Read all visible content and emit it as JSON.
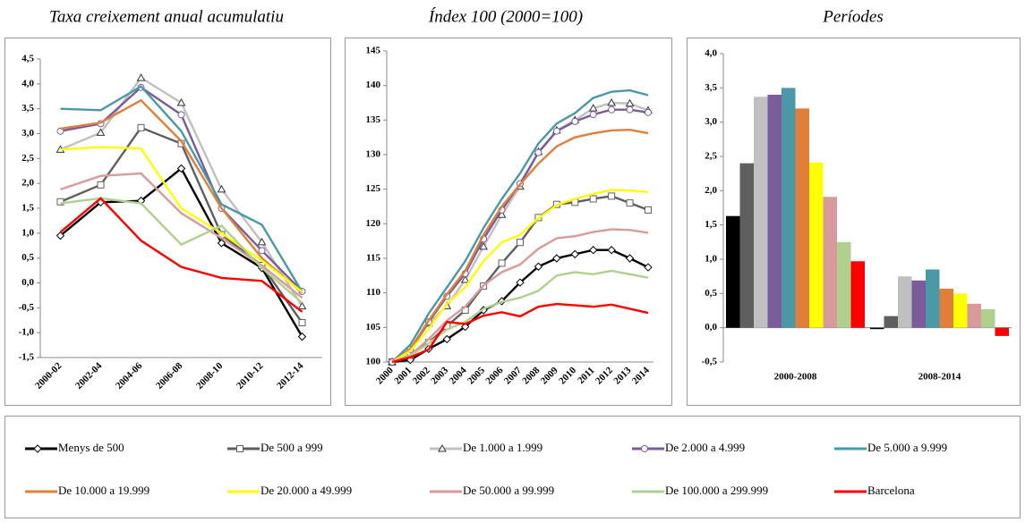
{
  "chart_data": [
    {
      "type": "line",
      "title": "Taxa creixement anual acumulatiu",
      "categories": [
        "2000-02",
        "2002-04",
        "2004-06",
        "2006-08",
        "2008-10",
        "2010-12",
        "2012-14"
      ],
      "ylim": [
        -1.5,
        4.5
      ],
      "yticks": [
        {
          "value": -1.5,
          "label": "-1,5"
        },
        {
          "value": -1,
          "label": "-1,0"
        },
        {
          "value": -0.5,
          "label": "-0,5"
        },
        {
          "value": 0,
          "label": "0,0"
        },
        {
          "value": 0.5,
          "label": "0,5"
        },
        {
          "value": 1,
          "label": "1,0"
        },
        {
          "value": 1.5,
          "label": "1,5"
        },
        {
          "value": 2,
          "label": "2,0"
        },
        {
          "value": 2.5,
          "label": "2,5"
        },
        {
          "value": 3,
          "label": "3,0"
        },
        {
          "value": 3.5,
          "label": "3,5"
        },
        {
          "value": 4,
          "label": "4,0"
        },
        {
          "value": 4.5,
          "label": "4,5"
        }
      ],
      "series": [
        {
          "name": "Menys de 500",
          "color": "#000000",
          "marker": "diamond",
          "values": [
            0.95,
            1.62,
            1.65,
            2.3,
            0.8,
            0.3,
            -1.08
          ]
        },
        {
          "name": "De 500 a 999",
          "color": "#5f5f5f",
          "marker": "square",
          "values": [
            1.63,
            1.97,
            3.12,
            2.8,
            0.97,
            0.35,
            -0.8
          ]
        },
        {
          "name": "De 1.000 a 1.999",
          "color": "#c0c0c0",
          "marker": "triangle",
          "values": [
            2.68,
            3.02,
            4.12,
            3.62,
            1.88,
            0.82,
            -0.47
          ]
        },
        {
          "name": "De 2.000 a 4.999",
          "color": "#7a5c9a",
          "marker": "circle",
          "values": [
            3.05,
            3.2,
            3.93,
            3.38,
            1.5,
            0.65,
            -0.17
          ]
        },
        {
          "name": "De 5.000 a 9.999",
          "color": "#4a98a8",
          "values": [
            3.5,
            3.47,
            3.95,
            3.05,
            1.58,
            1.17,
            -0.18
          ]
        },
        {
          "name": "De 10.000 a 19.999",
          "color": "#e07f3a",
          "values": [
            3.1,
            3.22,
            3.67,
            2.85,
            1.5,
            0.5,
            -0.2
          ]
        },
        {
          "name": "De 20.000 a 49.999",
          "color": "#ffff00",
          "values": [
            2.68,
            2.73,
            2.7,
            1.5,
            1.0,
            0.45,
            -0.18
          ]
        },
        {
          "name": "De 50.000 a 99.999",
          "color": "#d89a9a",
          "values": [
            1.88,
            2.15,
            2.2,
            1.4,
            0.9,
            0.35,
            -0.3
          ]
        },
        {
          "name": "De 100.000 a 299.999",
          "color": "#b0d090",
          "values": [
            1.6,
            1.7,
            1.6,
            0.77,
            1.15,
            0.3,
            -0.4
          ]
        },
        {
          "name": "Barcelona",
          "color": "#ff0000",
          "values": [
            1.02,
            1.7,
            0.85,
            0.32,
            0.1,
            0.04,
            -0.58
          ]
        }
      ]
    },
    {
      "type": "line",
      "title": "Índex 100 (2000=100)",
      "categories": [
        "2000",
        "2001",
        "2002",
        "2003",
        "2004",
        "2005",
        "2006",
        "2007",
        "2008",
        "2009",
        "2010",
        "2011",
        "2012",
        "2013",
        "2014"
      ],
      "ylim": [
        100,
        145
      ],
      "yticks": [
        100,
        105,
        110,
        115,
        120,
        125,
        130,
        135,
        140,
        145
      ],
      "series": [
        {
          "values": [
            100,
            100.3,
            101.9,
            103.3,
            105.1,
            107.5,
            108.8,
            111.5,
            113.8,
            115.0,
            115.6,
            116.2,
            116.2,
            115.0,
            113.7
          ]
        },
        {
          "values": [
            100,
            101.0,
            102.8,
            105.2,
            107.5,
            111.0,
            114.3,
            117.3,
            120.9,
            122.8,
            123.1,
            123.6,
            124.0,
            123.0,
            122.0
          ]
        },
        {
          "values": [
            100,
            101.8,
            105.6,
            108.1,
            111.9,
            116.7,
            121.3,
            125.4,
            130.4,
            133.5,
            135.0,
            136.7,
            137.5,
            137.4,
            136.4
          ]
        },
        {
          "values": [
            100,
            101.8,
            105.8,
            109.5,
            112.8,
            117.8,
            122.0,
            125.8,
            130.3,
            133.4,
            134.8,
            135.8,
            136.5,
            136.5,
            136.1
          ]
        },
        {
          "values": [
            100,
            102.5,
            107.0,
            110.8,
            114.6,
            119.4,
            123.6,
            127.3,
            131.6,
            134.5,
            136.0,
            138.2,
            139.1,
            139.3,
            138.6
          ]
        },
        {
          "values": [
            100,
            101.9,
            106.0,
            109.8,
            113.2,
            118.4,
            122.5,
            125.7,
            128.7,
            131.2,
            132.5,
            133.1,
            133.5,
            133.6,
            133.1
          ]
        },
        {
          "values": [
            100,
            101.6,
            104.8,
            108.4,
            110.8,
            114.6,
            117.3,
            118.4,
            120.8,
            122.7,
            123.6,
            124.3,
            124.9,
            124.8,
            124.6
          ]
        },
        {
          "values": [
            100,
            101.0,
            103.3,
            106.0,
            108.0,
            111.1,
            113.0,
            114.1,
            116.4,
            117.9,
            118.2,
            118.8,
            119.2,
            119.1,
            118.7
          ]
        },
        {
          "values": [
            100,
            100.9,
            102.7,
            104.7,
            105.8,
            107.7,
            108.7,
            109.3,
            110.3,
            112.5,
            113.0,
            112.7,
            113.2,
            112.7,
            112.2
          ]
        },
        {
          "values": [
            100,
            100.7,
            101.8,
            105.8,
            105.5,
            106.7,
            107.2,
            106.6,
            108.0,
            108.4,
            108.2,
            108.0,
            108.3,
            107.7,
            107.1
          ]
        }
      ]
    },
    {
      "type": "bar",
      "title": "Períodes",
      "categories": [
        "2000-2008",
        "2008-2014"
      ],
      "ylim": [
        -0.5,
        4
      ],
      "yticks": [
        {
          "value": -0.5,
          "label": "-0,5"
        },
        {
          "value": 0,
          "label": "0,0"
        },
        {
          "value": 0.5,
          "label": "0,5"
        },
        {
          "value": 1,
          "label": "1,0"
        },
        {
          "value": 1.5,
          "label": "1,5"
        },
        {
          "value": 2,
          "label": "2,0"
        },
        {
          "value": 2.5,
          "label": "2,5"
        },
        {
          "value": 3,
          "label": "3,0"
        },
        {
          "value": 3.5,
          "label": "3,5"
        },
        {
          "value": 4,
          "label": "4,0"
        }
      ],
      "series": [
        {
          "values": [
            1.63,
            -0.02
          ]
        },
        {
          "values": [
            2.4,
            0.17
          ]
        },
        {
          "values": [
            3.37,
            0.75
          ]
        },
        {
          "values": [
            3.4,
            0.69
          ]
        },
        {
          "values": [
            3.5,
            0.85
          ]
        },
        {
          "values": [
            3.2,
            0.57
          ]
        },
        {
          "values": [
            2.41,
            0.5
          ]
        },
        {
          "values": [
            1.91,
            0.35
          ]
        },
        {
          "values": [
            1.25,
            0.27
          ]
        },
        {
          "values": [
            0.97,
            -0.12
          ]
        }
      ]
    }
  ]
}
